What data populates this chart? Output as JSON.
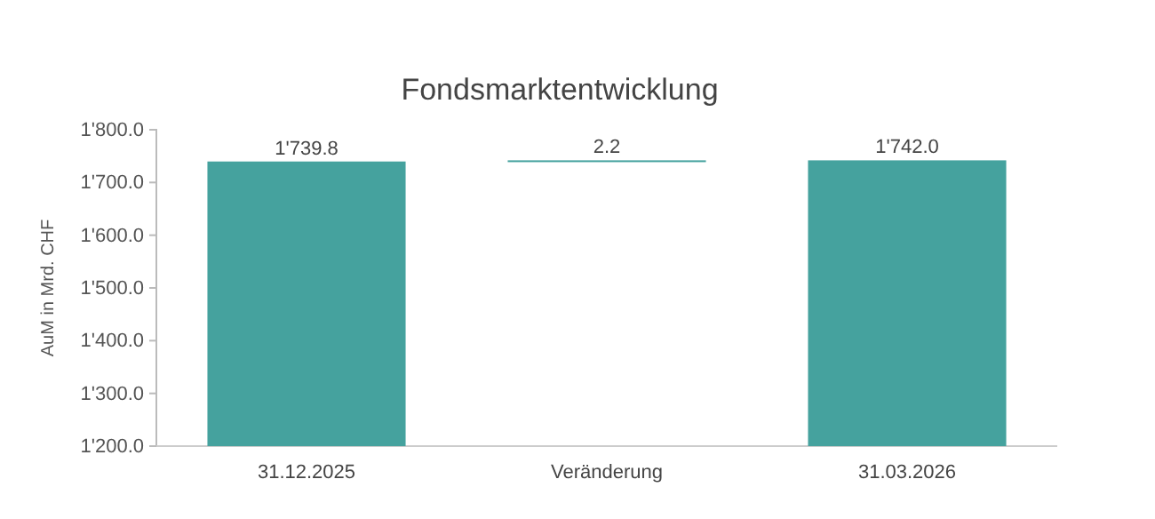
{
  "chart_data": {
    "type": "bar",
    "title": "Fondsmarktentwicklung",
    "ylabel": "AuM in Mrd. CHF",
    "categories": [
      "31.12.2025",
      "Veränderung",
      "31.03.2026"
    ],
    "values": [
      1739.8,
      2.2,
      1742.0
    ],
    "base": [
      null,
      1739.8,
      null
    ],
    "value_labels": [
      "1'739.8",
      "2.2",
      "1'742.0"
    ],
    "color": "#45a29e",
    "ylim": [
      1200,
      1800
    ],
    "yticks": [
      {
        "value": 1200,
        "label": "1'200.0"
      },
      {
        "value": 1300,
        "label": "1'300.0"
      },
      {
        "value": 1400,
        "label": "1'400.0"
      },
      {
        "value": 1500,
        "label": "1'500.0"
      },
      {
        "value": 1600,
        "label": "1'600.0"
      },
      {
        "value": 1700,
        "label": "1'700.0"
      },
      {
        "value": 1800,
        "label": "1'800.0"
      }
    ],
    "grid": false
  }
}
